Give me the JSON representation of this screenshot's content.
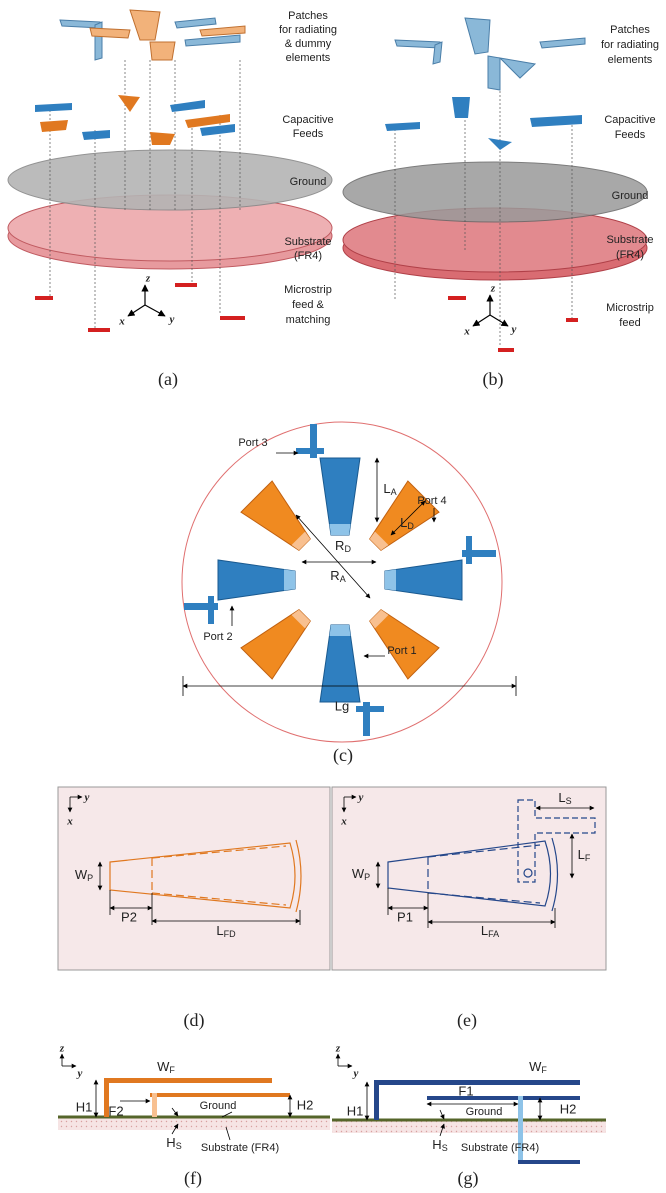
{
  "panel_a": {
    "caption": "(a)",
    "patches_label": [
      "Patches",
      "for radiating",
      "& dummy",
      "elements"
    ],
    "feeds_label": [
      "Capacitive",
      "Feeds"
    ],
    "ground_label": "Ground",
    "substrate_label": [
      "Substrate",
      "(FR4)"
    ],
    "feed_label": [
      "Microstrip",
      "feed &",
      "matching"
    ],
    "axes": {
      "z": "z",
      "x": "x",
      "y": "y"
    }
  },
  "panel_b": {
    "caption": "(b)",
    "patches_label": [
      "Patches",
      "for radiating",
      "elements"
    ],
    "feeds_label": [
      "Capacitive",
      "Feeds"
    ],
    "ground_label": "Ground",
    "substrate_label": [
      "Substrate",
      "(FR4)"
    ],
    "feed_label": [
      "Microstrip",
      "feed"
    ],
    "axes": {
      "z": "z",
      "x": "x",
      "y": "y"
    }
  },
  "panel_c": {
    "caption": "(c)",
    "ports": [
      "Port 1",
      "Port 2",
      "Port 3",
      "Port 4"
    ],
    "dims": {
      "LA": {
        "base": "L",
        "sub": "A"
      },
      "LD": {
        "base": "L",
        "sub": "D"
      },
      "RD": {
        "base": "R",
        "sub": "D"
      },
      "RA": {
        "base": "R",
        "sub": "A"
      },
      "Lg": "Lg"
    }
  },
  "panel_d": {
    "caption": "(d)",
    "axes": {
      "y": "y",
      "x": "x"
    },
    "WP": {
      "base": "W",
      "sub": "P"
    },
    "P2": "P2",
    "LFD": {
      "base": "L",
      "sub": "FD"
    }
  },
  "panel_e": {
    "caption": "(e)",
    "axes": {
      "y": "y",
      "x": "x"
    },
    "LS": {
      "base": "L",
      "sub": "S"
    },
    "LF": {
      "base": "L",
      "sub": "F"
    },
    "WP": {
      "base": "W",
      "sub": "P"
    },
    "P1": "P1",
    "LFA": {
      "base": "L",
      "sub": "FA"
    }
  },
  "panel_f": {
    "caption": "(f)",
    "axes": {
      "z": "z",
      "y": "y"
    },
    "WF": {
      "base": "W",
      "sub": "F"
    },
    "H1": "H1",
    "F2": "F2",
    "ground": "Ground",
    "H2": "H2",
    "HS": {
      "base": "H",
      "sub": "S"
    },
    "substrate": "Substrate (FR4)"
  },
  "panel_g": {
    "caption": "(g)",
    "axes": {
      "z": "z",
      "y": "y"
    },
    "WF": {
      "base": "W",
      "sub": "F"
    },
    "H1": "H1",
    "F1": "F1",
    "ground": "Ground",
    "H2": "H2",
    "HS": {
      "base": "H",
      "sub": "S"
    },
    "substrate": "Substrate (FR4)"
  }
}
